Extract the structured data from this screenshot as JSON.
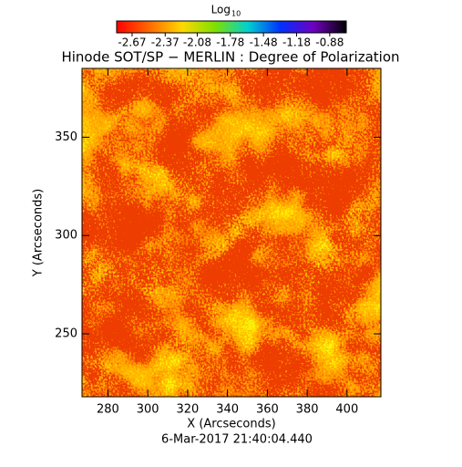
{
  "chart_data": {
    "type": "heatmap",
    "title": "Hinode SOT/SP − MERLIN : Degree of Polarization",
    "xlabel": "X (Arcseconds)",
    "ylabel": "Y (Arcseconds)",
    "footer": "6-Mar-2017 21:40:04.440",
    "colorbar_label": "Log",
    "colorbar_label_sub": "10",
    "clim": [
      -2.81,
      -0.73
    ],
    "cticks": [
      -2.67,
      -2.37,
      -2.08,
      -1.78,
      -1.48,
      -1.18,
      -0.88
    ],
    "colormap": [
      "#ff0000",
      "#ff6a00",
      "#ffd800",
      "#7ee000",
      "#00d0d0",
      "#0030ff",
      "#7000c0",
      "#000000"
    ],
    "xlim": [
      267,
      417
    ],
    "xticks": [
      280,
      300,
      320,
      340,
      360,
      380,
      400
    ],
    "ylim": [
      218,
      385
    ],
    "yticks": [
      250,
      300,
      350
    ]
  }
}
